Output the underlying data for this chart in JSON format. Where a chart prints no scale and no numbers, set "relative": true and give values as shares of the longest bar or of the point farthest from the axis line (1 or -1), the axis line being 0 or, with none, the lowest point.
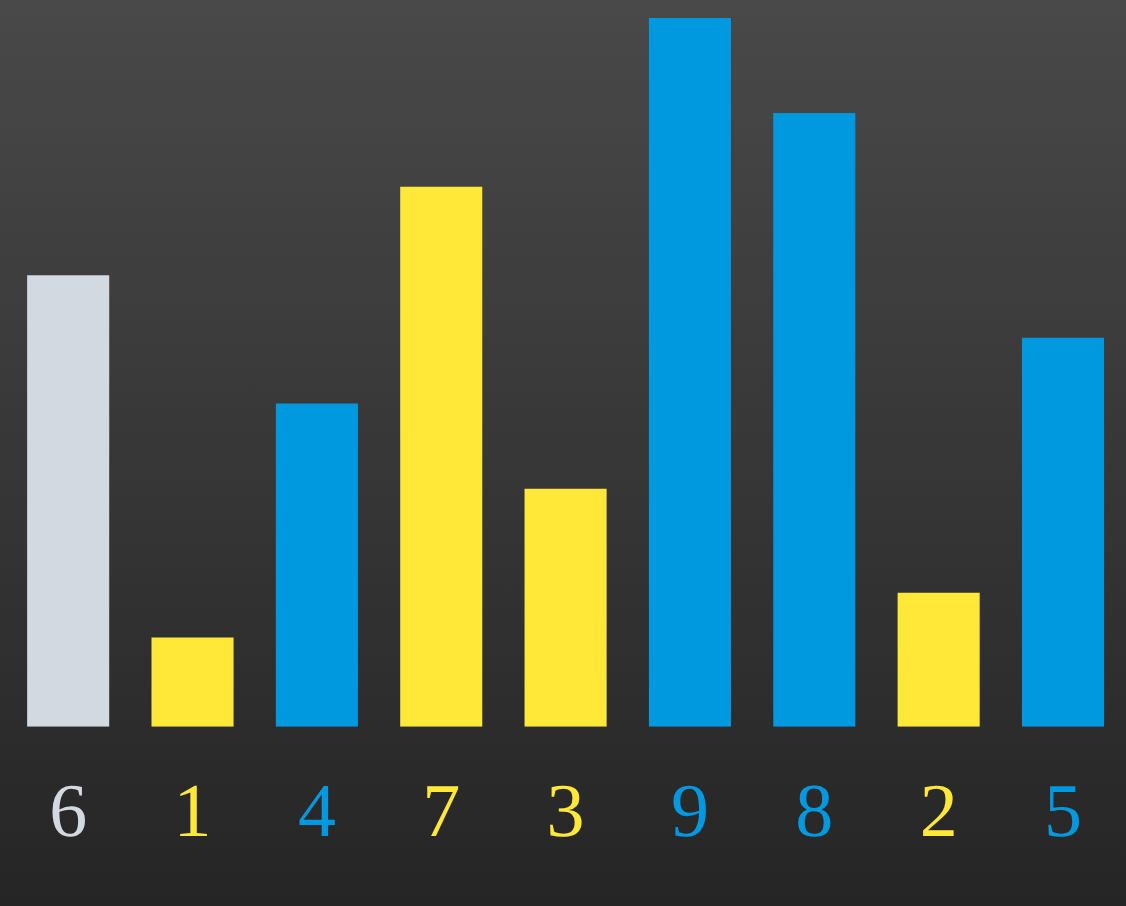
{
  "chart_data": {
    "type": "bar",
    "relative": true,
    "grid": false,
    "legend": false,
    "categories": [
      "6",
      "1",
      "4",
      "7",
      "3",
      "9",
      "8",
      "2",
      "5"
    ],
    "values": [
      0.637,
      0.126,
      0.456,
      0.762,
      0.336,
      1,
      0.866,
      0.189,
      0.549
    ],
    "colors": [
      "#d3d9e0",
      "#ffe838",
      "#0099e0",
      "#ffe838",
      "#ffe838",
      "#0099e0",
      "#0099e0",
      "#ffe838",
      "#0099e0"
    ]
  }
}
